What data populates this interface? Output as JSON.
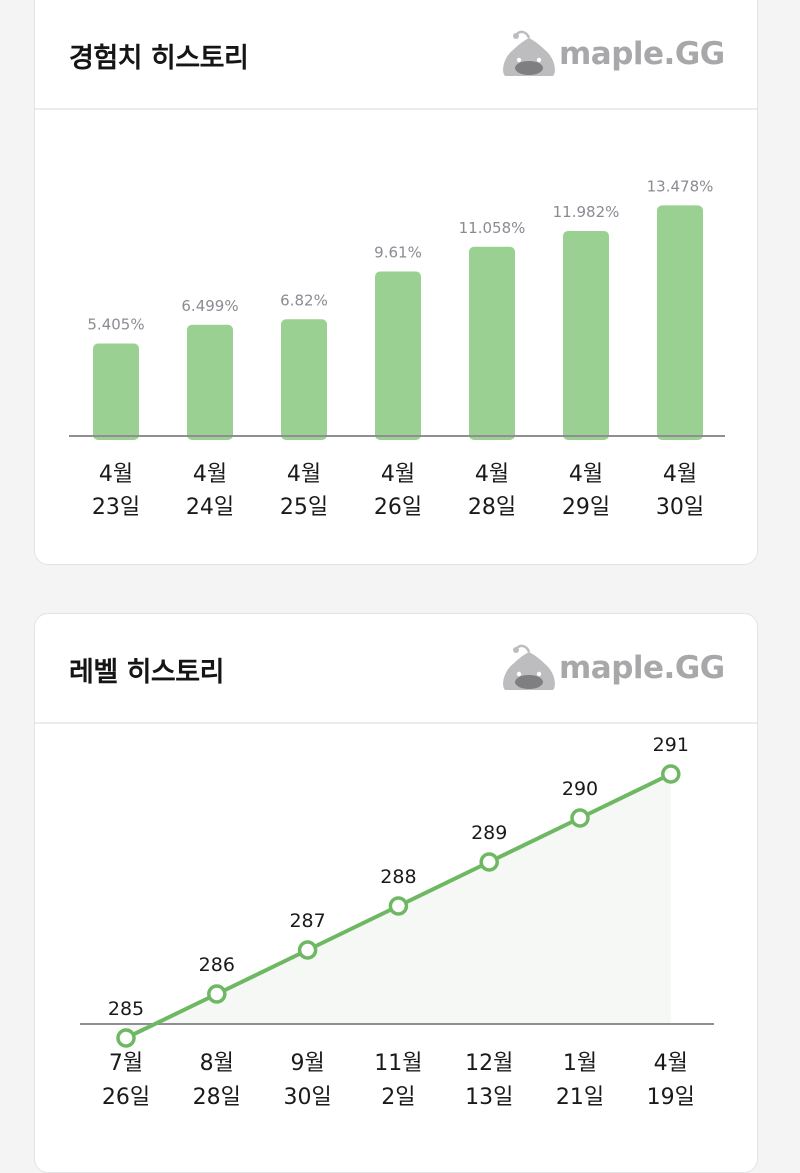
{
  "exp_card": {
    "title": "경험치 히스토리",
    "brand": "maple.GG"
  },
  "level_card": {
    "title": "레벨 히스토리",
    "brand": "maple.GG"
  },
  "colors": {
    "bar": "#9ad192",
    "line": "#6fb863",
    "area": "#f5f8f4",
    "axis": "#8e8e93",
    "brand_gray": "#a8a8aa"
  },
  "chart_data": [
    {
      "type": "bar",
      "title": "경험치 히스토리",
      "categories": [
        [
          "4월",
          "23일"
        ],
        [
          "4월",
          "24일"
        ],
        [
          "4월",
          "25일"
        ],
        [
          "4월",
          "26일"
        ],
        [
          "4월",
          "28일"
        ],
        [
          "4월",
          "29일"
        ],
        [
          "4월",
          "30일"
        ]
      ],
      "values": [
        5.405,
        6.499,
        6.82,
        9.61,
        11.058,
        11.982,
        13.478
      ],
      "value_labels": [
        "5.405%",
        "6.499%",
        "6.82%",
        "9.61%",
        "11.058%",
        "11.982%",
        "13.478%"
      ],
      "ylim": [
        0,
        14.2
      ],
      "grid": false
    },
    {
      "type": "line",
      "title": "레벨 히스토리",
      "categories": [
        [
          "7월",
          "26일"
        ],
        [
          "8월",
          "28일"
        ],
        [
          "9월",
          "30일"
        ],
        [
          "11월",
          "2일"
        ],
        [
          "12월",
          "13일"
        ],
        [
          "1월",
          "21일"
        ],
        [
          "4월",
          "19일"
        ]
      ],
      "values": [
        285,
        286,
        287,
        288,
        289,
        290,
        291
      ],
      "value_labels": [
        "285",
        "286",
        "287",
        "288",
        "289",
        "290",
        "291"
      ],
      "ylim": [
        284,
        292
      ],
      "grid": false
    }
  ]
}
